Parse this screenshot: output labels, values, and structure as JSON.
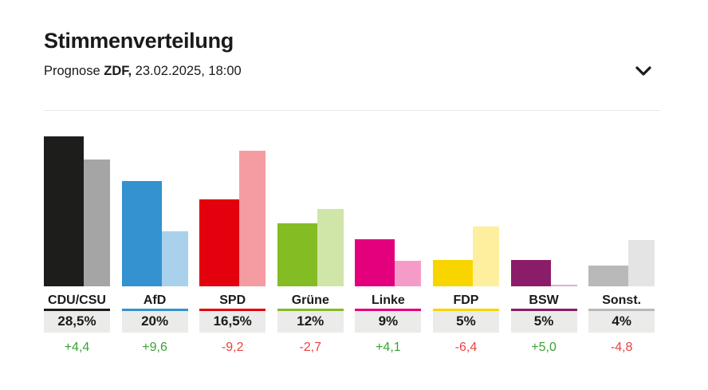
{
  "header": {
    "title": "Stimmenverteilung",
    "subtitle_prefix": "Prognose",
    "subtitle_source": "ZDF,",
    "subtitle_datetime": "23.02.2025, 18:00",
    "collapse_icon": "chevron-down"
  },
  "chart_data": {
    "type": "bar",
    "title": "Stimmenverteilung",
    "subtitle": "Prognose ZDF, 23.02.2025, 18:00",
    "unit": "%",
    "ylim": [
      0,
      30
    ],
    "grid": false,
    "legend_position": "none",
    "series_names": [
      "current_result",
      "previous_result"
    ],
    "parties": [
      {
        "name": "CDU/CSU",
        "value": 28.5,
        "value_label": "28,5%",
        "previous": 24.1,
        "change_label": "+4,4",
        "trend": "up",
        "color": "#1d1d1b",
        "previous_color": "#a5a5a5"
      },
      {
        "name": "AfD",
        "value": 20,
        "value_label": "20%",
        "previous": 10.4,
        "change_label": "+9,6",
        "trend": "up",
        "color": "#3392cf",
        "previous_color": "#a9d1ec"
      },
      {
        "name": "SPD",
        "value": 16.5,
        "value_label": "16,5%",
        "previous": 25.7,
        "change_label": "-9,2",
        "trend": "down",
        "color": "#e2010d",
        "previous_color": "#f59ca3"
      },
      {
        "name": "Grüne",
        "value": 12,
        "value_label": "12%",
        "previous": 14.7,
        "change_label": "-2,7",
        "trend": "down",
        "color": "#84bc24",
        "previous_color": "#d0e5a8"
      },
      {
        "name": "Linke",
        "value": 9,
        "value_label": "9%",
        "previous": 4.9,
        "change_label": "+4,1",
        "trend": "up",
        "color": "#e2007d",
        "previous_color": "#f49cc7"
      },
      {
        "name": "FDP",
        "value": 5,
        "value_label": "5%",
        "previous": 11.4,
        "change_label": "-6,4",
        "trend": "down",
        "color": "#f9d500",
        "previous_color": "#fdef9d"
      },
      {
        "name": "BSW",
        "value": 5,
        "value_label": "5%",
        "previous": 0,
        "change_label": "+5,0",
        "trend": "up",
        "color": "#8b1c69",
        "previous_color": "#d9b3d4"
      },
      {
        "name": "Sonst.",
        "value": 4,
        "value_label": "4%",
        "previous": 8.8,
        "change_label": "-4,8",
        "trend": "down",
        "color": "#b9b9b9",
        "previous_color": "#e4e4e4"
      }
    ],
    "colors": {
      "positive_change": "#3ba135",
      "negative_change": "#ef403e",
      "value_box_bg": "#ebebe9",
      "divider": "#e7e7e7",
      "text": "#1a1a1a"
    }
  }
}
